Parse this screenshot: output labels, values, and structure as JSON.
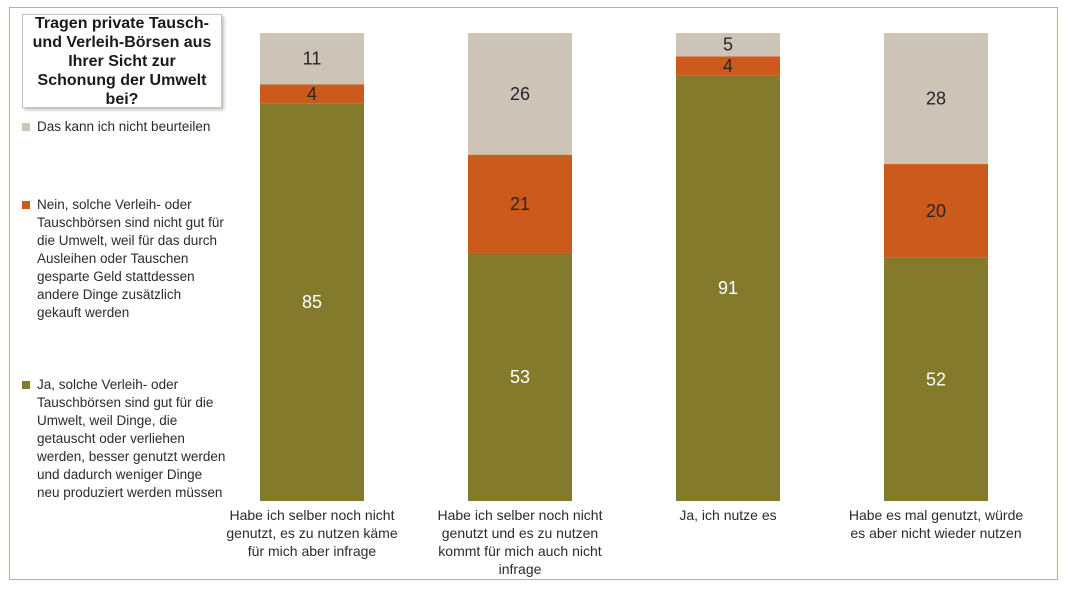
{
  "question": "Tragen private Tausch- und Verleih-Börsen aus Ihrer Sicht zur Schonung der Umwelt bei?",
  "legend": [
    {
      "label": "Das kann ich nicht beurteilen",
      "color": "#cdc4b8"
    },
    {
      "label": "Nein, solche Verleih- oder Tauschbörsen sind nicht gut für die Umwelt, weil für das durch Ausleihen oder Tauschen gesparte Geld stattdessen andere Dinge zusätzlich gekauft werden",
      "color": "#cc5a1d"
    },
    {
      "label": "Ja, solche Verleih- oder Tauschbörsen sind gut für die Umwelt, weil Dinge, die getauscht oder verliehen werden, besser genutzt werden und dadurch weniger Dinge neu produziert werden müssen",
      "color": "#847a2b"
    }
  ],
  "chart_data": {
    "type": "bar",
    "stacked": true,
    "orientation": "vertical",
    "title": "Tragen private Tausch- und Verleih-Börsen aus Ihrer Sicht zur Schonung der Umwelt bei?",
    "categories": [
      "Habe ich selber noch nicht genutzt, es zu nutzen käme für mich aber infrage",
      "Habe ich selber noch nicht genutzt und es zu nutzen kommt für mich auch nicht infrage",
      "Ja, ich nutze es",
      "Habe es mal genutzt, würde es aber nicht wieder nutzen"
    ],
    "series": [
      {
        "name": "Ja, solche Verleih- oder Tauschbörsen sind gut für die Umwelt, weil Dinge, die getauscht oder verliehen werden, besser genutzt werden und dadurch weniger Dinge neu produziert werden müssen",
        "values": [
          85,
          53,
          91,
          52
        ],
        "color": "#847a2b",
        "label_color": "#ffffff"
      },
      {
        "name": "Nein, solche Verleih- oder Tauschbörsen sind nicht gut für die Umwelt, weil für das durch Ausleihen oder Tauschen gesparte Geld stattdessen andere Dinge zusätzlich gekauft werden",
        "values": [
          4,
          21,
          4,
          20
        ],
        "color": "#cc5a1d",
        "label_color": "#262626"
      },
      {
        "name": "Das kann ich nicht beurteilen",
        "values": [
          11,
          26,
          5,
          28
        ],
        "color": "#cdc4b8",
        "label_color": "#262626"
      }
    ],
    "ylim": [
      0,
      100
    ],
    "grid": false,
    "legend_position": "left"
  }
}
